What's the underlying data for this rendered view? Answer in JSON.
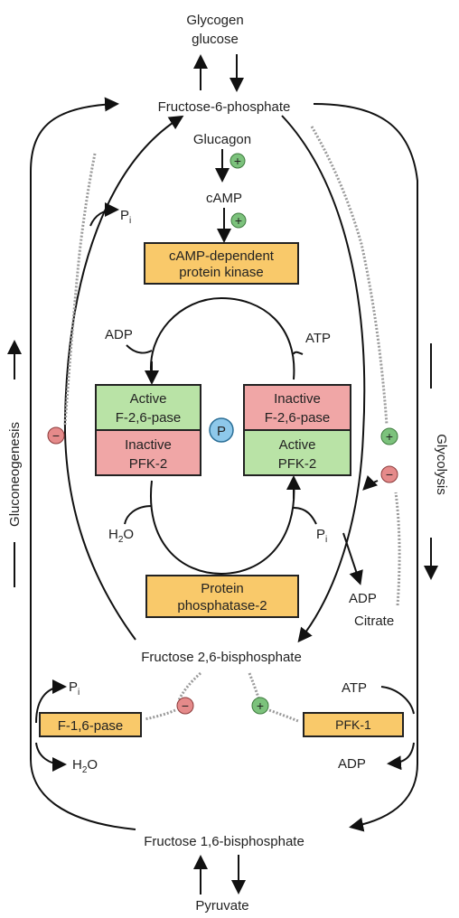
{
  "labels": {
    "glycogen_top": "Glycogen",
    "glycogen_bottom": "glucose",
    "f6p": "Fructose-6-phosphate",
    "glucagon": "Glucagon",
    "camp": "cAMP",
    "pi_top_left": "P",
    "pi_sub": "i",
    "adp_mid_left": "ADP",
    "atp_mid_right": "ATP",
    "h2o_mid_left": "H",
    "h2o_sub": "2",
    "h2o_tail": "O",
    "pi_mid_right": "P",
    "adp_right": "ADP",
    "citrate": "Citrate",
    "f26bp": "Fructose 2,6-bisphosphate",
    "pi_low_left": "P",
    "atp_low_right": "ATP",
    "h2o_low_left": "H",
    "adp_low_right": "ADP",
    "f16bp": "Fructose 1,6-bisphosphate",
    "pyruvate": "Pyruvate",
    "gluconeogenesis": "Gluconeogenesis",
    "glycolysis": "Glycolysis",
    "p_circle": "P"
  },
  "boxes": {
    "kinase_line1": "cAMP-dependent",
    "kinase_line2": "protein kinase",
    "active_f26pase_line1": "Active",
    "active_f26pase_line2": "F-2,6-pase",
    "inactive_pfk2_line1": "Inactive",
    "inactive_pfk2_line2": "PFK-2",
    "inactive_f26pase_line1": "Inactive",
    "inactive_f26pase_line2": "F-2,6-pase",
    "active_pfk2_line1": "Active",
    "active_pfk2_line2": "PFK-2",
    "phosphatase_line1": "Protein",
    "phosphatase_line2": "phosphatase-2",
    "f16pase": "F-1,6-pase",
    "pfk1": "PFK-1"
  },
  "regulation": {
    "plus": "+",
    "minus": "−"
  },
  "colors": {
    "yellow_box": "#f9c96a",
    "green_box": "#b9e3a6",
    "red_box": "#f0a6a6",
    "plus_circle": "#7cc27c",
    "minus_circle": "#e58a8a",
    "p_circle": "#8ec8ea"
  }
}
